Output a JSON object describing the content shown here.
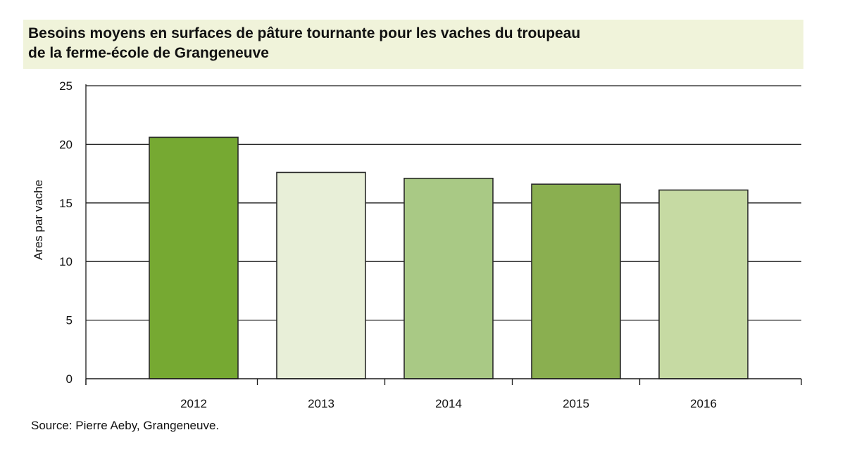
{
  "chart_data": {
    "type": "bar",
    "title_lines": [
      "Besoins moyens en surfaces de pâture tournante pour les vaches du troupeau",
      "de la ferme-école de Grangeneuve"
    ],
    "categories": [
      "2012",
      "2013",
      "2014",
      "2015",
      "2016"
    ],
    "values": [
      20.6,
      17.6,
      17.1,
      16.6,
      16.1
    ],
    "bar_colors": [
      "#76a932",
      "#e8efd8",
      "#a9c985",
      "#8aaf50",
      "#c6daa3"
    ],
    "ylabel": "Ares par vache",
    "xlabel": "",
    "ylim": [
      0,
      25
    ],
    "yticks": [
      0,
      5,
      10,
      15,
      20,
      25
    ],
    "grid": true,
    "source": "Source: Pierre Aeby, Grangeneuve."
  }
}
